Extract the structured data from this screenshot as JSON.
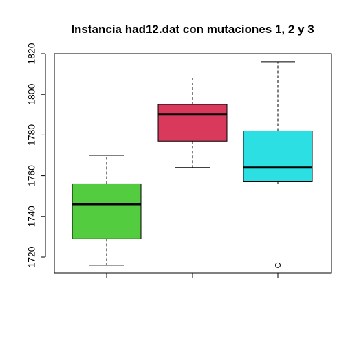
{
  "chart_data": {
    "type": "box",
    "title": "Instancia had12.dat con mutaciones 1, 2 y 3",
    "xlabel": "",
    "ylabel": "",
    "ylim": [
      1712,
      1820
    ],
    "yticks": [
      1720,
      1740,
      1760,
      1780,
      1800,
      1820
    ],
    "grid": false,
    "series": [
      {
        "color": "#54cc40",
        "whisker_low": 1716,
        "q1": 1729,
        "median": 1746,
        "q3": 1756,
        "whisker_high": 1770,
        "outliers": []
      },
      {
        "color": "#d93a5c",
        "whisker_low": 1764,
        "q1": 1777,
        "median": 1790,
        "q3": 1795,
        "whisker_high": 1808,
        "outliers": []
      },
      {
        "color": "#2bdfe3",
        "whisker_low": 1756,
        "q1": 1757,
        "median": 1764,
        "q3": 1782,
        "whisker_high": 1816,
        "outliers": [
          1716
        ]
      }
    ]
  }
}
